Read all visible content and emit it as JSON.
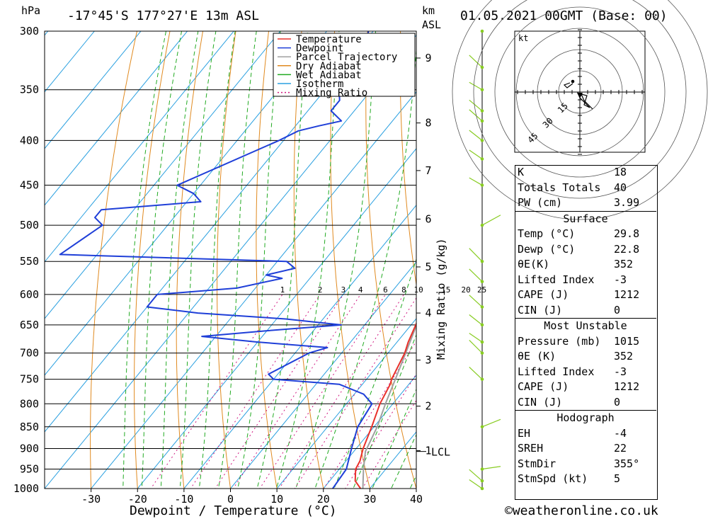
{
  "header": {
    "units_left": "hPa",
    "location": "-17°45'S 177°27'E 13m ASL",
    "units_km": "km",
    "units_asl": "ASL",
    "datetime": "01.05.2021 00GMT (Base: 00)"
  },
  "footer": {
    "xlabel": "Dewpoint / Temperature (°C)",
    "copyright": "©weatheronline.co.uk",
    "mixing_label": "Mixing Ratio (g/kg)"
  },
  "colors": {
    "temperature": "#e8302a",
    "dewpoint": "#1f3fd8",
    "parcel": "#a0a0a0",
    "dry_adiabat": "#e08a20",
    "wet_adiabat": "#22aa22",
    "isotherm": "#2aa0e0",
    "mixing_ratio": "#d01880",
    "wind": "#88cc22"
  },
  "chart_data": {
    "type": "line",
    "title": "-17°45'S 177°27'E 13m ASL",
    "xlabel": "Dewpoint / Temperature (°C)",
    "ylabel": "hPa",
    "xlim": [
      -40,
      40
    ],
    "ylim": [
      1000,
      300
    ],
    "x_ticks": [
      -30,
      -20,
      -10,
      0,
      10,
      20,
      30,
      40
    ],
    "p_ticks": [
      300,
      350,
      400,
      450,
      500,
      550,
      600,
      650,
      700,
      750,
      800,
      850,
      900,
      950,
      1000
    ],
    "km_ticks": [
      {
        "label": "9",
        "p": 322
      },
      {
        "label": "8",
        "p": 382
      },
      {
        "label": "7",
        "p": 433
      },
      {
        "label": "6",
        "p": 492
      },
      {
        "label": "5",
        "p": 558
      },
      {
        "label": "4",
        "p": 630
      },
      {
        "label": "3",
        "p": 713
      },
      {
        "label": "2",
        "p": 805
      },
      {
        "label": "1",
        "p": 905
      }
    ],
    "lcl_label": "LCL",
    "lcl_p": 907,
    "mixing_ratio_labels": [
      "1",
      "2",
      "3",
      "4",
      "6",
      "8",
      "10",
      "15",
      "20",
      "25"
    ],
    "mixing_ratio_values": [
      1,
      2,
      3,
      4,
      6,
      8,
      10,
      15,
      20,
      25
    ],
    "legend": [
      "Temperature",
      "Dewpoint",
      "Parcel Trajectory",
      "Dry Adiabat",
      "Wet Adiabat",
      "Isotherm",
      "Mixing Ratio"
    ],
    "legend_placement": "top-center",
    "series": [
      {
        "name": "Temperature",
        "points": [
          [
            1015,
            29.8
          ],
          [
            1000,
            28.0
          ],
          [
            980,
            25.5
          ],
          [
            950,
            23.5
          ],
          [
            930,
            23.0
          ],
          [
            900,
            21.5
          ],
          [
            850,
            19.5
          ],
          [
            800,
            17.2
          ],
          [
            760,
            16.0
          ],
          [
            750,
            15.4
          ],
          [
            700,
            13.6
          ],
          [
            680,
            12.4
          ],
          [
            650,
            11.0
          ],
          [
            600,
            8.6
          ],
          [
            560,
            5.6
          ],
          [
            550,
            4.2
          ],
          [
            520,
            2.4
          ],
          [
            500,
            0.8
          ],
          [
            470,
            -1.8
          ],
          [
            460,
            -3.5
          ],
          [
            440,
            -5.5
          ],
          [
            400,
            -10.5
          ],
          [
            380,
            -13.8
          ],
          [
            370,
            -16.0
          ],
          [
            360,
            -17.2
          ]
        ]
      },
      {
        "name": "Dewpoint",
        "points": [
          [
            1015,
            22.8
          ],
          [
            1000,
            22.0
          ],
          [
            950,
            21.5
          ],
          [
            900,
            19.0
          ],
          [
            850,
            16.5
          ],
          [
            800,
            15.5
          ],
          [
            780,
            12.0
          ],
          [
            760,
            5.0
          ],
          [
            750,
            -10.0
          ],
          [
            740,
            -12.0
          ],
          [
            700,
            -7.0
          ],
          [
            690,
            -4.0
          ],
          [
            680,
            -20.0
          ],
          [
            670,
            -33.0
          ],
          [
            660,
            -20.0
          ],
          [
            650,
            -5.0
          ],
          [
            640,
            -18.0
          ],
          [
            630,
            -38.0
          ],
          [
            620,
            -50.0
          ],
          [
            600,
            -50.0
          ],
          [
            590,
            -34.0
          ],
          [
            575,
            -26.0
          ],
          [
            570,
            -30.0
          ],
          [
            560,
            -25.0
          ],
          [
            550,
            -28.0
          ],
          [
            540,
            -78.0
          ],
          [
            500,
            -74.0
          ],
          [
            490,
            -77.0
          ],
          [
            480,
            -77.0
          ],
          [
            470,
            -57.0
          ],
          [
            460,
            -60.0
          ],
          [
            450,
            -65.0
          ],
          [
            400,
            -51.0
          ],
          [
            390,
            -48.5
          ],
          [
            385,
            -45.0
          ],
          [
            380,
            -41.0
          ],
          [
            370,
            -45.0
          ],
          [
            360,
            -45.0
          ],
          [
            350,
            -47.0
          ],
          [
            340,
            -47.0
          ],
          [
            330,
            -47.5
          ],
          [
            320,
            -48.0
          ],
          [
            310,
            -49.5
          ],
          [
            300,
            -51.0
          ]
        ]
      },
      {
        "name": "Parcel Trajectory",
        "points": [
          [
            1015,
            29.8
          ],
          [
            1000,
            28.5
          ],
          [
            950,
            25.2
          ],
          [
            907,
            22.5
          ],
          [
            850,
            20.7
          ],
          [
            800,
            18.4
          ],
          [
            750,
            16.2
          ],
          [
            700,
            13.8
          ],
          [
            650,
            11.2
          ],
          [
            600,
            8.2
          ],
          [
            550,
            4.8
          ],
          [
            500,
            1.2
          ],
          [
            450,
            -3.2
          ],
          [
            400,
            -8.3
          ],
          [
            360,
            -13.0
          ]
        ]
      }
    ],
    "hodograph": {
      "units": "kt",
      "ring_labels": [
        "15",
        "30",
        "45"
      ],
      "ring_values": [
        15,
        30,
        45
      ]
    }
  },
  "indices": {
    "top": [
      {
        "label": "K",
        "value": "18"
      },
      {
        "label": "Totals Totals",
        "value": "40"
      },
      {
        "label": "PW (cm)",
        "value": "3.99"
      }
    ],
    "surface": {
      "title": "Surface",
      "rows": [
        {
          "label": "Temp (°C)",
          "value": "29.8"
        },
        {
          "label": "Dewp (°C)",
          "value": "22.8"
        },
        {
          "label": "θE(K)",
          "value": "352"
        },
        {
          "label": "Lifted Index",
          "value": "-3"
        },
        {
          "label": "CAPE (J)",
          "value": "1212"
        },
        {
          "label": "CIN (J)",
          "value": "0"
        }
      ]
    },
    "most_unstable": {
      "title": "Most Unstable",
      "rows": [
        {
          "label": "Pressure (mb)",
          "value": "1015"
        },
        {
          "label": "θE (K)",
          "value": "352"
        },
        {
          "label": "Lifted Index",
          "value": "-3"
        },
        {
          "label": "CAPE (J)",
          "value": "1212"
        },
        {
          "label": "CIN (J)",
          "value": "0"
        }
      ]
    },
    "hodograph": {
      "title": "Hodograph",
      "rows": [
        {
          "label": "EH",
          "value": "-4"
        },
        {
          "label": "SREH",
          "value": "22"
        },
        {
          "label": "StmDir",
          "value": "355°"
        },
        {
          "label": "StmSpd (kt)",
          "value": "5"
        }
      ]
    }
  }
}
